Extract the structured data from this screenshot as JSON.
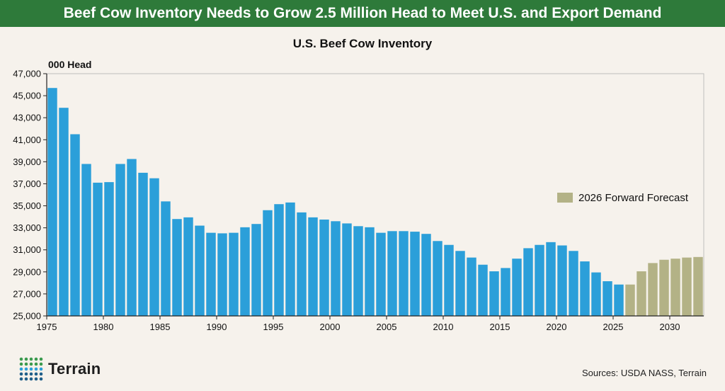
{
  "banner": {
    "title": "Beef Cow Inventory Needs to Grow 2.5 Million Head to Meet U.S. and Export Demand"
  },
  "source": "Sources: USDA NASS, Terrain",
  "logo": {
    "text": "Terrain"
  },
  "colors": {
    "banner": "#2e7a3a",
    "historical": "#2b9fd9",
    "forecast": "#b3b286",
    "background": "#f6f2ec"
  },
  "chart_data": {
    "type": "bar",
    "title": "U.S. Beef Cow Inventory",
    "ylabel": "000 Head",
    "xlabel": "",
    "ylim": [
      25000,
      47000
    ],
    "yticks": [
      "25,000",
      "27,000",
      "29,000",
      "31,000",
      "33,000",
      "35,000",
      "37,000",
      "39,000",
      "41,000",
      "43,000",
      "45,000",
      "47,000"
    ],
    "ytick_values": [
      25000,
      27000,
      29000,
      31000,
      33000,
      35000,
      37000,
      39000,
      41000,
      43000,
      45000,
      47000
    ],
    "xticks": [
      "1975",
      "1980",
      "1985",
      "1990",
      "1995",
      "2000",
      "2005",
      "2010",
      "2015",
      "2020",
      "2025",
      "2030"
    ],
    "xtick_values": [
      1975,
      1980,
      1985,
      1990,
      1995,
      2000,
      2005,
      2010,
      2015,
      2020,
      2025,
      2030
    ],
    "xlim": [
      1975,
      2033
    ],
    "grid": false,
    "legend_placement": "right",
    "series": [
      {
        "key": "historical",
        "x": [
          1976,
          1977,
          1978,
          1979,
          1980,
          1981,
          1982,
          1983,
          1984,
          1985,
          1986,
          1987,
          1988,
          1989,
          1990,
          1991,
          1992,
          1993,
          1994,
          1995,
          1996,
          1997,
          1998,
          1999,
          2000,
          2001,
          2002,
          2003,
          2004,
          2005,
          2006,
          2007,
          2008,
          2009,
          2010,
          2011,
          2012,
          2013,
          2014,
          2015,
          2016,
          2017,
          2018,
          2019,
          2020,
          2021,
          2022,
          2023,
          2024,
          2025,
          2026
        ],
        "values": [
          45700,
          43900,
          41500,
          38800,
          37100,
          37150,
          38800,
          39250,
          38000,
          37500,
          35400,
          33800,
          33950,
          33200,
          32550,
          32500,
          32550,
          33050,
          33350,
          34600,
          35150,
          35300,
          34400,
          33950,
          33750,
          33600,
          33400,
          33150,
          33050,
          32550,
          32700,
          32700,
          32650,
          32450,
          31800,
          31450,
          30900,
          30300,
          29650,
          29050,
          29350,
          30200,
          31150,
          31450,
          31700,
          31400,
          30900,
          29950,
          28950,
          28150,
          27850
        ]
      },
      {
        "key": "forecast",
        "name": "2026 Forward Forecast",
        "x": [
          2027,
          2028,
          2029,
          2030,
          2031,
          2032,
          2033
        ],
        "values": [
          27850,
          29050,
          29800,
          30100,
          30200,
          30300,
          30350
        ]
      }
    ]
  }
}
